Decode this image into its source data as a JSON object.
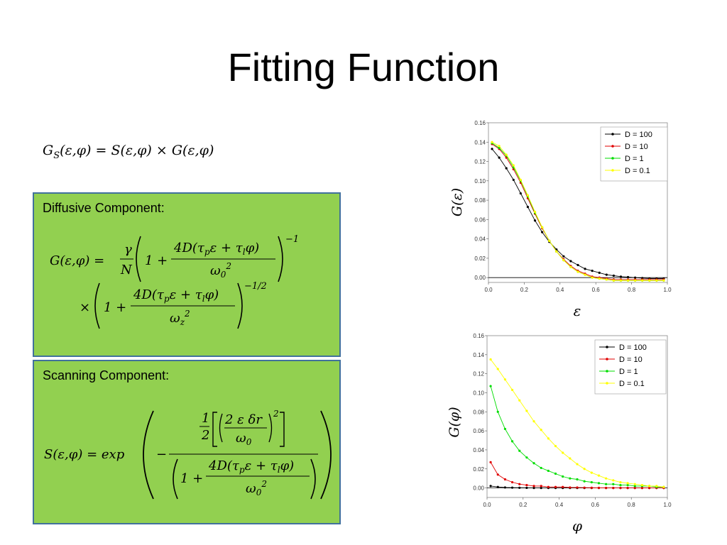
{
  "slide": {
    "title": "Fitting Function",
    "equation_gs": "G_S(ε,φ) = S(ε,φ) × G(ε,φ)",
    "diffusive": {
      "label": "Diffusive Component:",
      "line1": {
        "lhs": "G(ε,φ) =",
        "frac_num": "γ",
        "frac_den": "N",
        "one_plus": "1 +",
        "inner_num": "4D(τpε + τlφ)",
        "inner_den": "ω0²",
        "exponent": "−1"
      },
      "line2": {
        "times": "×",
        "one_plus": "1 +",
        "inner_num": "4D(τpε + τlφ)",
        "inner_den": "ωz²",
        "exponent": "−1/2"
      }
    },
    "scanning": {
      "label": "Scanning Component:",
      "lhs": "S(ε,φ) = exp",
      "minus": "−",
      "half_num": "1",
      "half_den": "2",
      "sq_num": "2 ε δr",
      "sq_den": "ω0",
      "sq_exp": "2",
      "den_one_plus": "1 +",
      "den_num": "4D(τpε + τlφ)",
      "den_den": "ω0²"
    }
  },
  "chart_data": [
    {
      "type": "line",
      "ylabel": "G(ε)",
      "xlabel": "ε",
      "xlim": [
        0,
        1
      ],
      "ylim": [
        -0.005,
        0.16
      ],
      "xticks": [
        "0.0",
        "0.2",
        "0.4",
        "0.6",
        "0.8",
        "1.0"
      ],
      "yticks": [
        "0.00",
        "0.02",
        "0.04",
        "0.06",
        "0.08",
        "0.10",
        "0.12",
        "0.14",
        "0.16"
      ],
      "legend_position": "top-right",
      "x": [
        0.02,
        0.06,
        0.1,
        0.14,
        0.18,
        0.22,
        0.26,
        0.3,
        0.34,
        0.38,
        0.42,
        0.46,
        0.5,
        0.54,
        0.58,
        0.62,
        0.66,
        0.7,
        0.74,
        0.78,
        0.82,
        0.86,
        0.9,
        0.94,
        0.98
      ],
      "series": [
        {
          "name": "D = 100",
          "color": "#000000",
          "values": [
            0.133,
            0.124,
            0.113,
            0.101,
            0.087,
            0.073,
            0.059,
            0.047,
            0.037,
            0.029,
            0.022,
            0.017,
            0.013,
            0.009,
            0.007,
            0.005,
            0.003,
            0.002,
            0.001,
            0.0005,
            0.0,
            -0.0005,
            -0.001,
            -0.001,
            -0.001
          ]
        },
        {
          "name": "D = 10",
          "color": "#e00000",
          "values": [
            0.138,
            0.133,
            0.124,
            0.112,
            0.098,
            0.082,
            0.066,
            0.051,
            0.038,
            0.027,
            0.019,
            0.012,
            0.007,
            0.004,
            0.001,
            0.0,
            -0.001,
            -0.002,
            -0.002,
            -0.002,
            -0.002,
            -0.002,
            -0.002,
            -0.002,
            -0.002
          ]
        },
        {
          "name": "D = 1",
          "color": "#00dd00",
          "values": [
            0.139,
            0.134,
            0.126,
            0.114,
            0.1,
            0.084,
            0.067,
            0.052,
            0.038,
            0.027,
            0.018,
            0.011,
            0.006,
            0.003,
            0.0,
            -0.001,
            -0.002,
            -0.003,
            -0.003,
            -0.003,
            -0.003,
            -0.003,
            -0.003,
            -0.003,
            -0.003
          ]
        },
        {
          "name": "D = 0.1",
          "color": "#ffff00",
          "values": [
            0.14,
            0.136,
            0.127,
            0.116,
            0.101,
            0.085,
            0.068,
            0.052,
            0.038,
            0.027,
            0.018,
            0.011,
            0.006,
            0.003,
            0.0,
            -0.001,
            -0.002,
            -0.003,
            -0.003,
            -0.003,
            -0.003,
            -0.003,
            -0.003,
            -0.003,
            -0.003
          ]
        }
      ]
    },
    {
      "type": "line",
      "ylabel": "G(φ)",
      "xlabel": "φ",
      "xlim": [
        0,
        1
      ],
      "ylim": [
        -0.01,
        0.16
      ],
      "xticks": [
        "0.0",
        "0.2",
        "0.4",
        "0.6",
        "0.8",
        "1.0"
      ],
      "yticks": [
        "0.00",
        "0.02",
        "0.04",
        "0.06",
        "0.08",
        "0.10",
        "0.12",
        "0.14",
        "0.16"
      ],
      "legend_position": "top-right",
      "x": [
        0.02,
        0.06,
        0.1,
        0.14,
        0.18,
        0.22,
        0.26,
        0.3,
        0.34,
        0.38,
        0.42,
        0.46,
        0.5,
        0.54,
        0.58,
        0.62,
        0.66,
        0.7,
        0.74,
        0.78,
        0.82,
        0.86,
        0.9,
        0.94,
        0.98
      ],
      "series": [
        {
          "name": "D = 100",
          "color": "#000000",
          "values": [
            0.002,
            0.001,
            0.0005,
            0.0003,
            0.0002,
            0.0001,
            0.0,
            0.0,
            0.0,
            0.0,
            0.0,
            0.0,
            0.0,
            0.0,
            0.0,
            0.0,
            0.0,
            0.0,
            0.0,
            0.0,
            0.0,
            0.0,
            0.0,
            0.0,
            0.0
          ]
        },
        {
          "name": "D = 10",
          "color": "#e00000",
          "values": [
            0.027,
            0.014,
            0.009,
            0.006,
            0.004,
            0.003,
            0.002,
            0.002,
            0.001,
            0.001,
            0.001,
            0.0005,
            0.0005,
            0.0003,
            0.0002,
            0.0001,
            0.0,
            0.0,
            0.0,
            0.0,
            0.0,
            0.0,
            0.0,
            0.0,
            0.0
          ]
        },
        {
          "name": "D = 1",
          "color": "#00dd00",
          "values": [
            0.107,
            0.08,
            0.062,
            0.049,
            0.039,
            0.032,
            0.026,
            0.021,
            0.018,
            0.015,
            0.012,
            0.01,
            0.009,
            0.007,
            0.006,
            0.005,
            0.004,
            0.004,
            0.003,
            0.003,
            0.002,
            0.002,
            0.002,
            0.001,
            0.001
          ]
        },
        {
          "name": "D = 0.1",
          "color": "#ffff00",
          "values": [
            0.135,
            0.125,
            0.114,
            0.103,
            0.092,
            0.081,
            0.07,
            0.061,
            0.052,
            0.044,
            0.037,
            0.031,
            0.025,
            0.02,
            0.016,
            0.013,
            0.01,
            0.008,
            0.006,
            0.005,
            0.004,
            0.003,
            0.002,
            0.002,
            0.001
          ]
        }
      ]
    }
  ]
}
